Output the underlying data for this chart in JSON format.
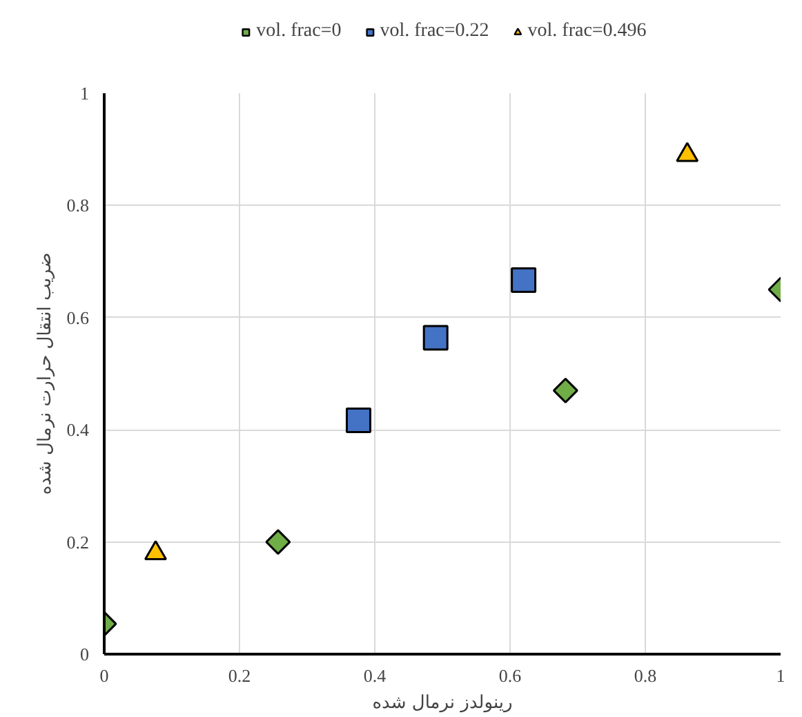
{
  "chart_data": {
    "type": "scatter",
    "xlabel": "رینولدز نرمال شده",
    "ylabel": "ضریب انتقال حرارت نرمال شده",
    "xlim": [
      0,
      1
    ],
    "ylim": [
      0,
      1
    ],
    "xticks": [
      0,
      0.2,
      0.4,
      0.6,
      0.8,
      1
    ],
    "yticks": [
      0,
      0.2,
      0.4,
      0.6,
      0.8,
      1
    ],
    "grid": true,
    "legend": "top",
    "series": [
      {
        "name": "vol. frac=0",
        "color": "#70ad47",
        "marker": "diamond",
        "x": [
          0,
          0.257,
          0.682,
          1.0
        ],
        "values": [
          0.054,
          0.2,
          0.47,
          0.65
        ]
      },
      {
        "name": "vol. frac=0.22",
        "color": "#4472c4",
        "marker": "square",
        "x": [
          0.376,
          0.49,
          0.62
        ],
        "values": [
          0.417,
          0.564,
          0.667
        ]
      },
      {
        "name": "vol. frac=0.496",
        "color": "#ffc000",
        "marker": "triangle",
        "x": [
          0.076,
          0.862
        ],
        "values": [
          0.18,
          0.89
        ]
      }
    ]
  }
}
